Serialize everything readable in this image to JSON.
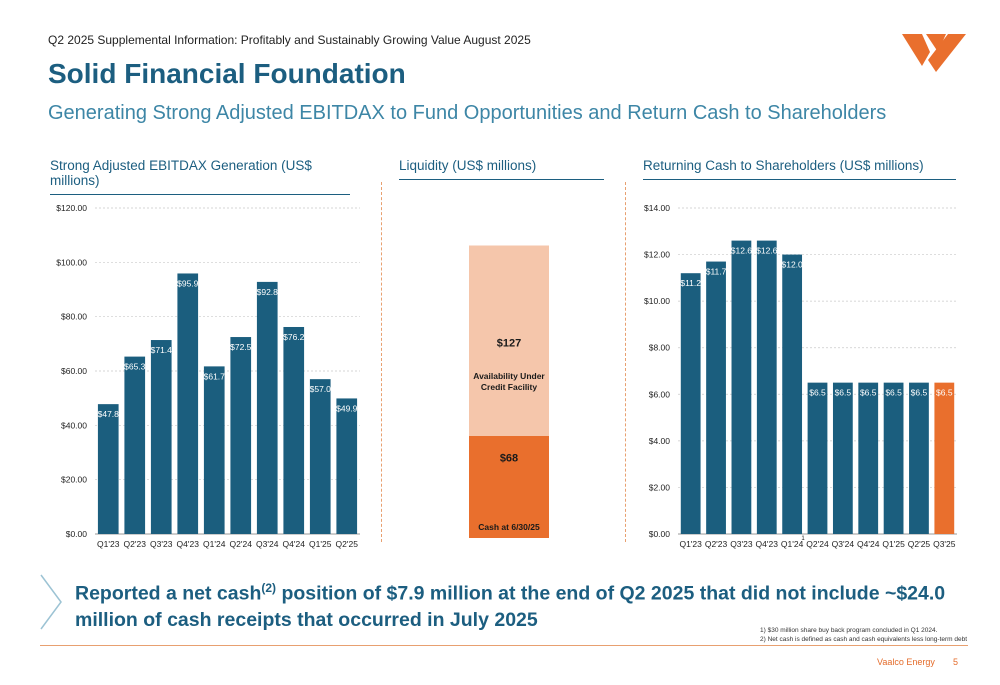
{
  "header": {
    "doc_line": "Q2 2025 Supplemental Information: Profitably and Sustainably Growing Value August 2025",
    "title": "Solid Financial Foundation",
    "subtitle": "Generating Strong Adjusted EBITDAX to Fund Opportunities and Return Cash to Shareholders"
  },
  "colors": {
    "bar_blue": "#1b5e7e",
    "accent_orange": "#e96f2d",
    "light_orange": "#f5c6ab",
    "title_blue": "#1c5e80"
  },
  "chart_data": [
    {
      "type": "bar",
      "title": "Strong Adjusted EBITDAX Generation (US$ millions)",
      "categories": [
        "Q1'23",
        "Q2'23",
        "Q3'23",
        "Q4'23",
        "Q1'24",
        "Q2'24",
        "Q3'24",
        "Q4'24",
        "Q1'25",
        "Q2'25"
      ],
      "values": [
        47.8,
        65.3,
        71.4,
        95.9,
        61.7,
        72.5,
        92.8,
        76.2,
        57.0,
        49.9
      ],
      "value_labels": [
        "$47.8",
        "$65.3",
        "$71.4",
        "$95.9",
        "$61.7",
        "$72.5",
        "$92.8",
        "$76.2",
        "$57.0",
        "$49.9"
      ],
      "yticks": [
        "$0.00",
        "$20.00",
        "$40.00",
        "$60.00",
        "$80.00",
        "$100.00",
        "$120.00"
      ],
      "ylim": [
        0,
        120
      ],
      "grid": true
    },
    {
      "type": "bar",
      "stacked": true,
      "title": "Liquidity (US$ millions)",
      "segments": [
        {
          "value": 68,
          "value_label": "$68",
          "label": "Cash at 6/30/25",
          "color": "#e96f2d"
        },
        {
          "value": 127,
          "value_label": "$127",
          "label": "Availability Under Credit Facility",
          "color": "#f5c6ab"
        }
      ]
    },
    {
      "type": "bar",
      "title": "Returning Cash to Shareholders (US$ millions)",
      "categories": [
        "Q1'23",
        "Q2'23",
        "Q3'23",
        "Q4'23",
        "Q1'24",
        "Q2'24",
        "Q3'24",
        "Q4'24",
        "Q1'25",
        "Q2'25",
        "Q3'25"
      ],
      "values": [
        11.2,
        11.7,
        12.6,
        12.6,
        12.0,
        6.5,
        6.5,
        6.5,
        6.5,
        6.5,
        6.5
      ],
      "value_labels": [
        "$11.2",
        "$11.7",
        "$12.6",
        "$12.6",
        "$12.0",
        "$6.5",
        "$6.5",
        "$6.5",
        "$6.5",
        "$6.5",
        "$6.5"
      ],
      "highlight_index": 10,
      "footnote_marker": "1",
      "footnote_marker_index": 4,
      "yticks": [
        "$0.00",
        "$2.00",
        "$4.00",
        "$6.00",
        "$8.00",
        "$10.00",
        "$12.00",
        "$14.00"
      ],
      "ylim": [
        0,
        14
      ],
      "grid": true
    }
  ],
  "callout": {
    "text_before": "Reported a net cash",
    "superscript": "(2)",
    "text_after": " position of $7.9 million at the end of Q2 2025 that did not include ~$24.0 million of cash receipts that occurred in July 2025"
  },
  "footnotes": [
    "1) $30 million share buy back program concluded in Q1 2024.",
    "2) Net cash is defined as cash and cash equivalents less long-term debt"
  ],
  "footer": {
    "company": "Vaalco Energy",
    "page": "5"
  }
}
